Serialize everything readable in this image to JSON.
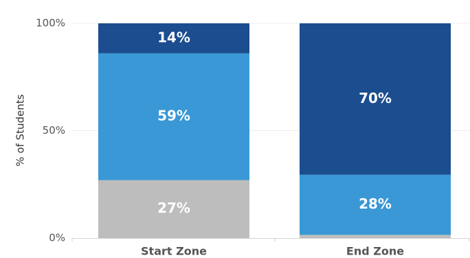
{
  "chart_data": {
    "type": "bar",
    "stacked": true,
    "title": "",
    "xlabel": "",
    "ylabel": "% of Students",
    "ylim": [
      0,
      100
    ],
    "y_ticks": [
      "0%",
      "50%",
      "100%"
    ],
    "y_tick_values": [
      0,
      50,
      100
    ],
    "grid": true,
    "categories": [
      "Start Zone",
      "End Zone"
    ],
    "series": [
      {
        "values": [
          27,
          1.5
        ],
        "labels": [
          "27%",
          ""
        ],
        "color": "#bdbdbd"
      },
      {
        "values": [
          59,
          28
        ],
        "labels": [
          "59%",
          "28%"
        ],
        "color": "#3a98d6"
      },
      {
        "values": [
          14,
          70.5
        ],
        "labels": [
          "14%",
          "70%"
        ],
        "color": "#1b4d8f"
      }
    ]
  }
}
